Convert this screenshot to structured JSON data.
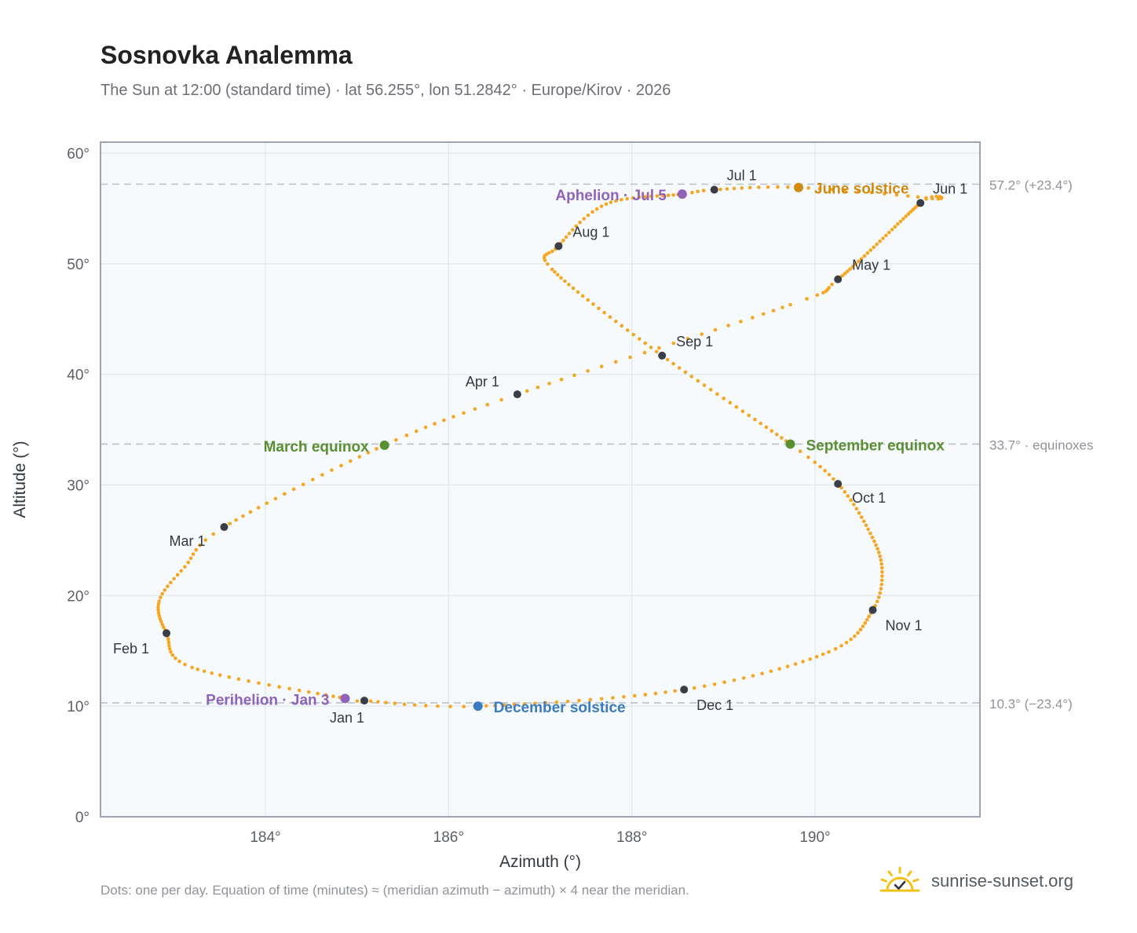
{
  "header": {
    "title": "Sosnovka Analemma",
    "subtitle": "The Sun at 12:00 (standard time) · lat 56.255°, lon 51.2842° · Europe/Kirov · 2026"
  },
  "footer": {
    "note": "Dots: one per day. Equation of time (minutes) ≈ (meridian azimuth − azimuth) × 4 near the meridian.",
    "brand": "sunrise-sunset.org",
    "brand_icon": "sun-check-icon"
  },
  "colors": {
    "curve": "#f5a623",
    "month_marker": "#3a3f47",
    "equinox": "#5a8f32",
    "june_solstice": "#d18a0e",
    "december_solstice": "#3b7bbf",
    "perihelion_aphelion": "#8e63b8",
    "plot_bg": "#f7fafc",
    "grid": "#e3e9ee",
    "ref_line": "#b8c2cc"
  },
  "chart_data": {
    "type": "scatter",
    "xlabel": "Azimuth (°)",
    "ylabel": "Altitude (°)",
    "xlim": [
      182.2,
      191.8
    ],
    "ylim": [
      0,
      61
    ],
    "xticks": [
      184,
      186,
      188,
      190
    ],
    "yticks": [
      0,
      10,
      20,
      30,
      40,
      50,
      60
    ],
    "x_tick_labels": [
      "184°",
      "186°",
      "188°",
      "190°"
    ],
    "y_tick_labels": [
      "0°",
      "10°",
      "20°",
      "30°",
      "40°",
      "50°",
      "60°"
    ],
    "grid": true,
    "reference_lines": [
      {
        "y": 57.2,
        "label": "57.2° (+23.4°)"
      },
      {
        "y": 33.7,
        "label": "33.7° · equinoxes"
      },
      {
        "y": 10.3,
        "label": "10.3° (−23.4°)"
      }
    ],
    "month_markers": [
      {
        "label": "Jan 1",
        "x": 185.08,
        "y": 10.5
      },
      {
        "label": "Feb 1",
        "x": 182.92,
        "y": 16.6
      },
      {
        "label": "Mar 1",
        "x": 183.55,
        "y": 26.2
      },
      {
        "label": "Apr 1",
        "x": 186.75,
        "y": 38.2
      },
      {
        "label": "May 1",
        "x": 190.25,
        "y": 48.6
      },
      {
        "label": "Jun 1",
        "x": 191.15,
        "y": 55.5
      },
      {
        "label": "Jul 1",
        "x": 188.9,
        "y": 56.7
      },
      {
        "label": "Aug 1",
        "x": 187.2,
        "y": 51.6
      },
      {
        "label": "Sep 1",
        "x": 188.33,
        "y": 41.7
      },
      {
        "label": "Oct 1",
        "x": 190.25,
        "y": 30.1
      },
      {
        "label": "Nov 1",
        "x": 190.63,
        "y": 18.7
      },
      {
        "label": "Dec 1",
        "x": 188.57,
        "y": 11.5
      }
    ],
    "events": [
      {
        "label": "March equinox",
        "x": 185.3,
        "y": 33.6,
        "kind": "equinox"
      },
      {
        "label": "September equinox",
        "x": 189.73,
        "y": 33.7,
        "kind": "equinox"
      },
      {
        "label": "June solstice",
        "x": 189.82,
        "y": 56.9,
        "kind": "june_solstice"
      },
      {
        "label": "December solstice",
        "x": 186.32,
        "y": 10.0,
        "kind": "december_solstice"
      },
      {
        "label": "Perihelion · Jan 3",
        "x": 184.87,
        "y": 10.7,
        "kind": "perihelion_aphelion"
      },
      {
        "label": "Aphelion · Jul 5",
        "x": 188.55,
        "y": 56.3,
        "kind": "perihelion_aphelion"
      }
    ]
  }
}
